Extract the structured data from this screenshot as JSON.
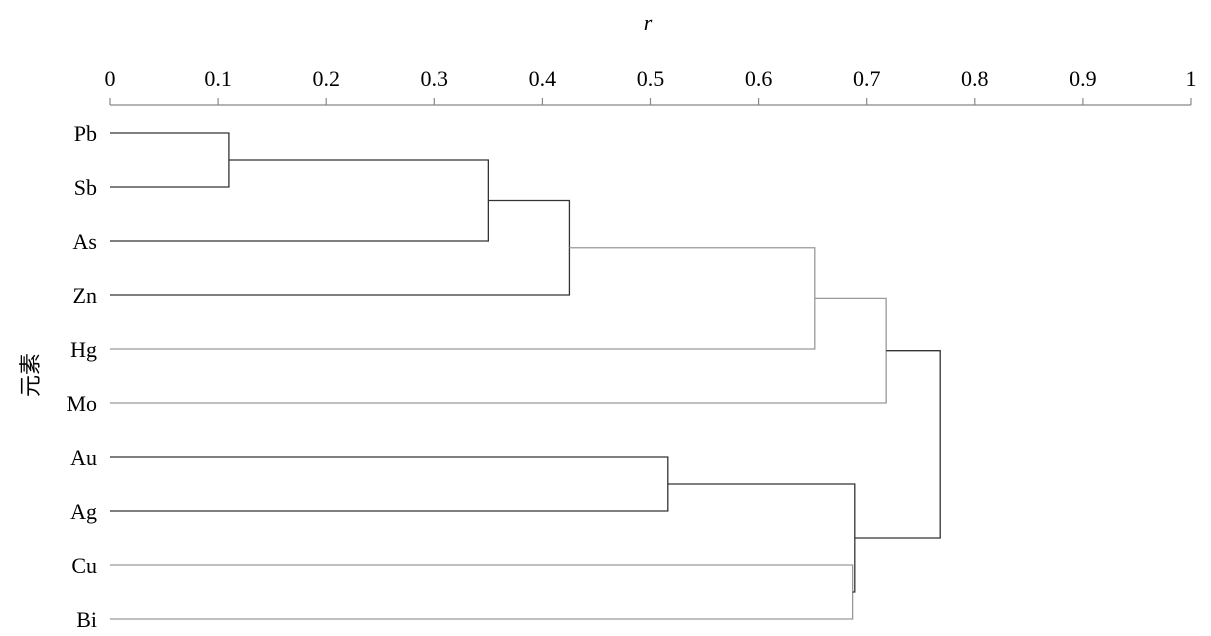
{
  "chart_data": {
    "type": "dendrogram",
    "title": "",
    "xlabel": "r",
    "ylabel": "元素",
    "xlim": [
      0,
      1
    ],
    "xticks": [
      "0",
      "0.1",
      "0.2",
      "0.3",
      "0.4",
      "0.5",
      "0.6",
      "0.7",
      "0.8",
      "0.9",
      "1"
    ],
    "leaves": [
      "Pb",
      "Sb",
      "As",
      "Zn",
      "Hg",
      "Mo",
      "Au",
      "Ag",
      "Cu",
      "Bi"
    ],
    "merges": [
      {
        "id": "m1",
        "left": "Pb",
        "right": "Sb",
        "height": 0.11
      },
      {
        "id": "m2",
        "left": "m1",
        "right": "As",
        "height": 0.35
      },
      {
        "id": "m3",
        "left": "m2",
        "right": "Zn",
        "height": 0.425
      },
      {
        "id": "m4",
        "left": "m3",
        "right": "Hg",
        "height": 0.652
      },
      {
        "id": "m5",
        "left": "m4",
        "right": "Mo",
        "height": 0.718
      },
      {
        "id": "m6",
        "left": "Au",
        "right": "Ag",
        "height": 0.516
      },
      {
        "id": "m7",
        "left": "Cu",
        "right": "Bi",
        "height": 0.687
      },
      {
        "id": "m8",
        "left": "m6",
        "right": "m7",
        "height": 0.689
      },
      {
        "id": "m9",
        "left": "m5",
        "right": "m8",
        "height": 0.768
      }
    ],
    "colors": {
      "dark": "#333333",
      "light": "#999999",
      "axis": "#888888"
    }
  }
}
